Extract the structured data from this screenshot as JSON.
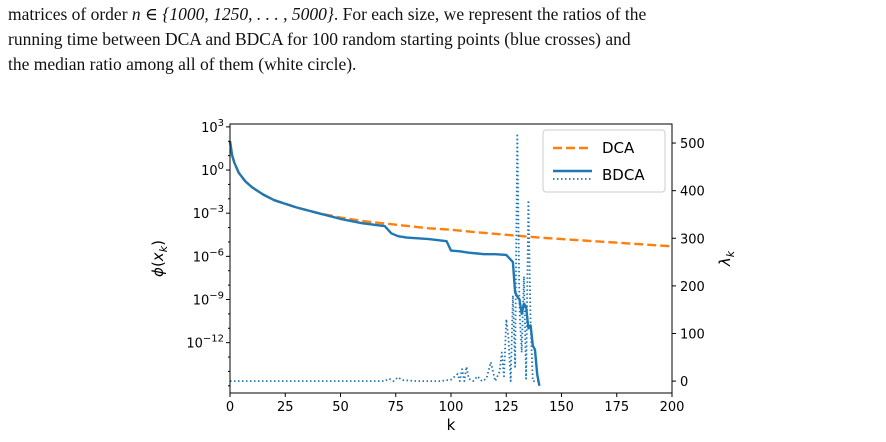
{
  "caption": {
    "line1_pre": "matrices of order ",
    "line1_math": "n ∈ {1000, 1250, . . . , 5000}",
    "line1_post": ". For each size, we represent the ratios of the",
    "line2": "running time between DCA and BDCA for 100 random starting points (blue crosses) and",
    "line3": "the median ratio among all of them (white circle)."
  },
  "colors": {
    "dca": "#ff7f0e",
    "bdca": "#1f77b4"
  },
  "chart_data": {
    "type": "line",
    "title": "",
    "xlabel": "k",
    "ylabel_left": "ϕ(x_k)",
    "ylabel_right": "λ_k",
    "xlim": [
      0,
      200
    ],
    "x_ticks": [
      0,
      25,
      50,
      75,
      100,
      125,
      150,
      175,
      200
    ],
    "y_left_scale": "log",
    "y_left_lim_exp": [
      -15.5,
      3.2
    ],
    "y_left_tick_exps": [
      3,
      0,
      -3,
      -6,
      -9,
      -12
    ],
    "y_right_lim": [
      -25,
      540
    ],
    "y_right_ticks": [
      0,
      100,
      200,
      300,
      400,
      500
    ],
    "grid": false,
    "legend": {
      "placement": "top-right",
      "entries": [
        "DCA",
        "BDCA"
      ]
    },
    "series": [
      {
        "name": "DCA",
        "axis": "left",
        "style": "dashed",
        "x": [
          0,
          1,
          2,
          4,
          7,
          10,
          15,
          20,
          30,
          40,
          50,
          60,
          75,
          90,
          100,
          110,
          125,
          140,
          160,
          180,
          200
        ],
        "log10_y": [
          2.0,
          1.0,
          0.5,
          -0.2,
          -0.8,
          -1.2,
          -1.7,
          -2.1,
          -2.6,
          -3.0,
          -3.3,
          -3.55,
          -3.8,
          -4.05,
          -4.15,
          -4.3,
          -4.5,
          -4.7,
          -4.9,
          -5.1,
          -5.3
        ]
      },
      {
        "name": "BDCA",
        "axis": "left",
        "style": "solid",
        "x": [
          0,
          1,
          2,
          4,
          7,
          10,
          15,
          20,
          30,
          40,
          50,
          60,
          70,
          73,
          76,
          80,
          90,
          98,
          100,
          104,
          108,
          112,
          115,
          120,
          125,
          128,
          129,
          130,
          131,
          132,
          133,
          134,
          135,
          136,
          137,
          138,
          139,
          140
        ],
        "log10_y": [
          2.0,
          1.0,
          0.5,
          -0.2,
          -0.8,
          -1.2,
          -1.7,
          -2.1,
          -2.6,
          -3.0,
          -3.4,
          -3.7,
          -3.9,
          -4.4,
          -4.6,
          -4.7,
          -4.8,
          -4.95,
          -5.6,
          -5.65,
          -5.75,
          -5.8,
          -5.85,
          -5.85,
          -5.9,
          -6.4,
          -8.5,
          -8.8,
          -9.0,
          -10.0,
          -9.3,
          -9.5,
          -11.0,
          -10.8,
          -12.2,
          -12.5,
          -14.2,
          -15.0
        ]
      },
      {
        "name": "",
        "axis": "right",
        "style": "dotted",
        "x": [
          0,
          60,
          70,
          72,
          74,
          76,
          78,
          85,
          95,
          100,
          103,
          104,
          105,
          106,
          107,
          108,
          110,
          112,
          114,
          116,
          118,
          120,
          122,
          123,
          124,
          125,
          126,
          127,
          128,
          129,
          130,
          131,
          132,
          133,
          134,
          135,
          136,
          137,
          138,
          139,
          140
        ],
        "y": [
          0,
          0,
          0,
          5,
          0,
          8,
          2,
          0,
          0,
          3,
          15,
          0,
          25,
          0,
          30,
          5,
          0,
          10,
          0,
          5,
          40,
          0,
          20,
          60,
          10,
          130,
          90,
          0,
          180,
          30,
          520,
          150,
          60,
          220,
          5,
          380,
          120,
          0,
          0,
          0,
          0
        ]
      }
    ]
  }
}
